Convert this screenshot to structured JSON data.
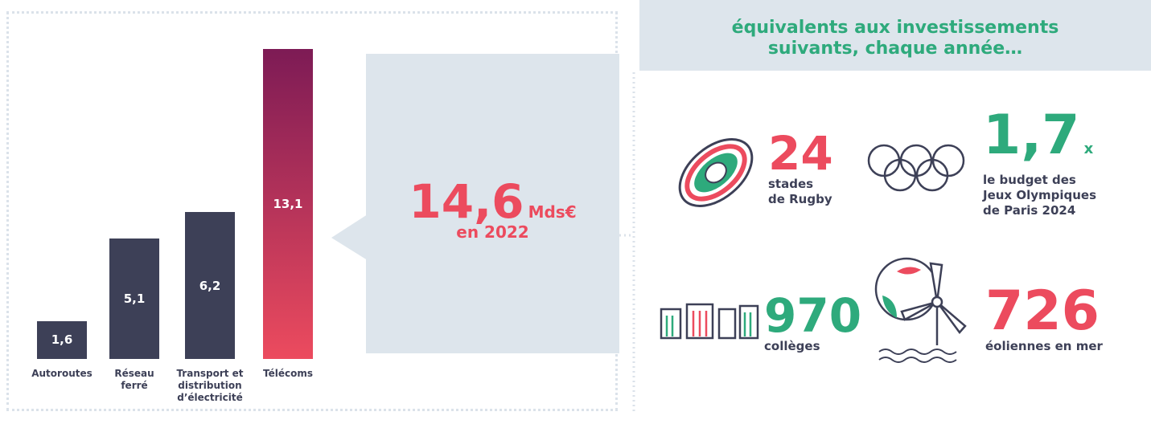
{
  "chart_data": {
    "type": "bar",
    "categories": [
      "Autoroutes",
      "Réseau ferré",
      "Transport et distribution d’électricité",
      "Télécoms"
    ],
    "values": [
      1.6,
      5.1,
      6.2,
      13.1
    ],
    "value_labels": [
      "1,6",
      "5,1",
      "6,2",
      "13,1"
    ],
    "colors": [
      "#3d4057",
      "#3d4057",
      "#3d4057",
      "#ec4b5e"
    ],
    "highlight_top_color": "#7d1b55",
    "ylim": [
      0,
      14
    ]
  },
  "callout": {
    "value": "14,6",
    "unit": "Mds€",
    "year": "en 2022"
  },
  "panel": {
    "heading": "équivalents aux investissements suivants, chaque année…",
    "items": [
      {
        "number": "24",
        "text": "stades de Rugby",
        "color": "#ec4b5e"
      },
      {
        "number": "1,7",
        "suffix": "x",
        "text": "le budget des Jeux Olympiques de Paris 2024",
        "color": "#2eaa7c"
      },
      {
        "number": "970",
        "text": "collèges",
        "color": "#2eaa7c"
      },
      {
        "number": "726",
        "text": "éoliennes en mer",
        "color": "#ec4b5e"
      }
    ]
  }
}
